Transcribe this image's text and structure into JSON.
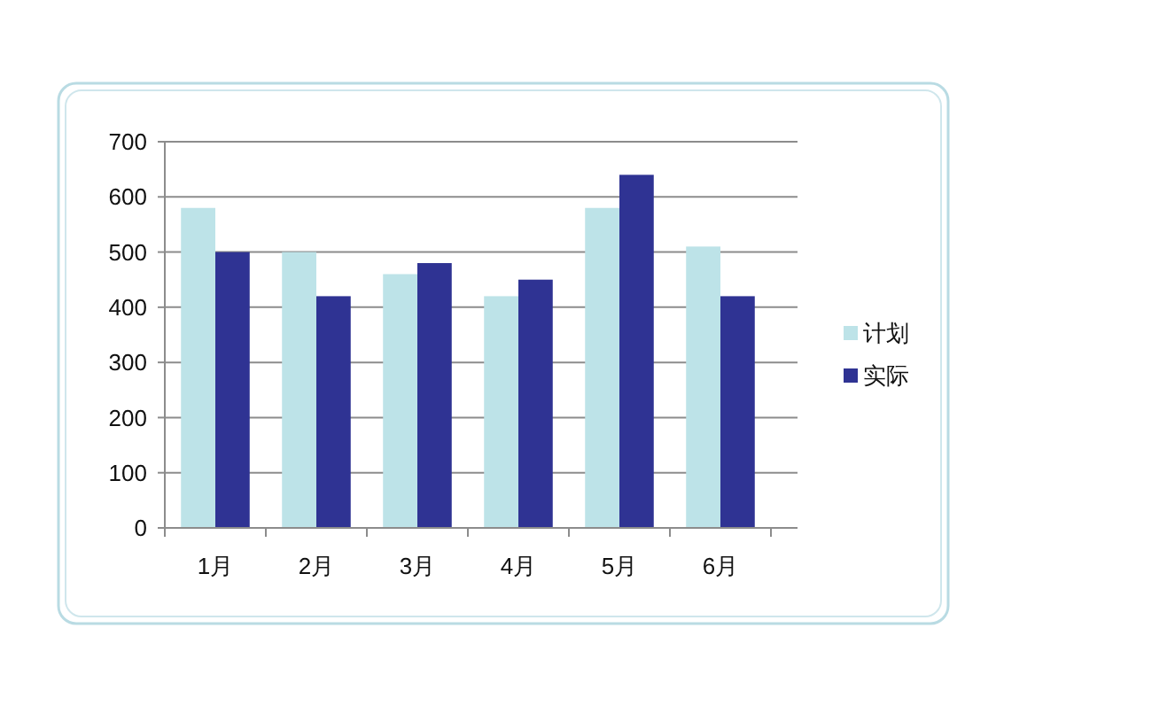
{
  "chart_data": {
    "type": "bar",
    "categories": [
      "1月",
      "2月",
      "3月",
      "4月",
      "5月",
      "6月"
    ],
    "series": [
      {
        "name": "计划",
        "color": "#bde3e8",
        "values": [
          580,
          500,
          460,
          420,
          580,
          510
        ]
      },
      {
        "name": "实际",
        "color": "#2f3393",
        "values": [
          500,
          420,
          480,
          450,
          640,
          420
        ]
      }
    ],
    "ylim": [
      0,
      700
    ],
    "yticks": [
      0,
      100,
      200,
      300,
      400,
      500,
      600,
      700
    ],
    "grid": "y",
    "legend": "right"
  }
}
